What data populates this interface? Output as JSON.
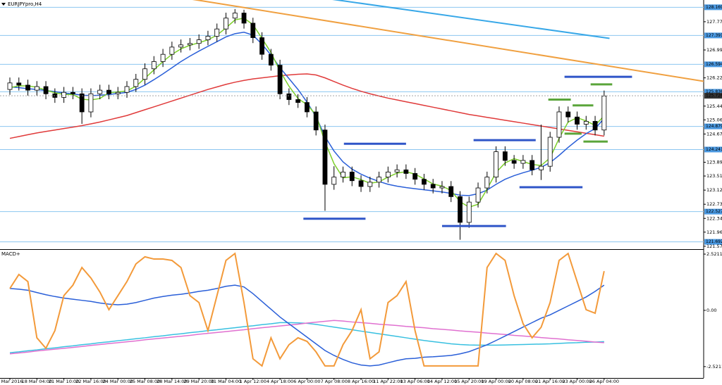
{
  "chart_data": [
    {
      "type": "candlestick",
      "title": "EURJPYpro,H4",
      "categories": [
        "8 Mar 2016",
        null,
        null,
        "18 Mar 04:00",
        null,
        null,
        "21 Mar 10:00",
        null,
        null,
        "22 Mar 16:00",
        null,
        null,
        "24 Mar 00:00",
        null,
        null,
        "25 Mar 08:00",
        null,
        null,
        "28 Mar 14:00",
        null,
        null,
        "29 Mar 20:00",
        null,
        null,
        "31 Mar 04:00",
        null,
        null,
        "1 Apr 12:00",
        null,
        null,
        "4 Apr 18:00",
        null,
        null,
        "6 Apr 00:00",
        null,
        null,
        "7 Apr 08:00",
        null,
        null,
        "8 Apr 16:00",
        null,
        null,
        "11 Apr 22:00",
        null,
        null,
        "13 Apr 06:00",
        null,
        null,
        "14 Apr 12:00",
        null,
        null,
        "15 Apr 20:00",
        null,
        null,
        "19 Apr 00:00",
        null,
        null,
        "20 Apr 08:00",
        null,
        null,
        "21 Apr 16:00",
        null,
        null,
        "23 Apr 00:00",
        null,
        null,
        "26 Apr 04:00"
      ],
      "open": [
        125.9,
        126.08,
        126.02,
        125.88,
        125.98,
        125.78,
        125.68,
        125.82,
        125.78,
        125.28,
        125.78,
        125.88,
        125.78,
        125.82,
        125.98,
        126.18,
        126.47,
        126.67,
        126.87,
        127.07,
        127.13,
        127.17,
        127.27,
        127.37,
        127.57,
        127.87,
        128.01,
        127.73,
        127.33,
        126.87,
        126.57,
        125.78,
        125.62,
        125.54,
        125.28,
        124.78,
        123.28,
        123.48,
        123.62,
        123.38,
        123.22,
        123.34,
        123.48,
        123.62,
        123.68,
        123.58,
        123.42,
        123.28,
        123.18,
        123.22,
        122.94,
        122.23,
        122.79,
        123.18,
        123.48,
        124.18,
        123.94,
        123.86,
        123.94,
        123.68,
        123.78,
        124.58,
        125.28,
        125.14,
        124.94,
        125.02,
        124.78
      ],
      "high": [
        126.23,
        126.23,
        126.17,
        126.13,
        126.13,
        125.93,
        125.97,
        125.97,
        125.93,
        125.93,
        126.03,
        126.03,
        125.97,
        126.13,
        126.33,
        126.62,
        126.82,
        127.02,
        127.22,
        127.28,
        127.32,
        127.42,
        127.52,
        127.72,
        128.02,
        128.12,
        128.1,
        127.88,
        127.48,
        127.02,
        126.72,
        125.93,
        125.77,
        125.69,
        125.43,
        124.93,
        123.78,
        123.77,
        123.77,
        123.53,
        123.49,
        123.63,
        123.77,
        123.83,
        123.83,
        123.73,
        123.57,
        123.43,
        123.37,
        123.37,
        123.09,
        122.94,
        123.33,
        123.63,
        124.33,
        124.33,
        124.09,
        124.09,
        124.09,
        124.93,
        124.73,
        125.43,
        125.43,
        125.29,
        125.17,
        125.17,
        125.87
      ],
      "low": [
        125.75,
        125.87,
        125.73,
        125.73,
        125.63,
        125.53,
        125.53,
        125.63,
        124.95,
        125.13,
        125.63,
        125.63,
        125.63,
        125.67,
        125.83,
        126.03,
        126.32,
        126.52,
        126.72,
        126.92,
        126.98,
        127.02,
        127.12,
        127.22,
        127.42,
        127.72,
        127.58,
        127.18,
        126.72,
        126.42,
        125.63,
        125.47,
        125.39,
        125.13,
        124.63,
        122.55,
        123.13,
        123.33,
        123.23,
        123.07,
        123.07,
        123.19,
        123.33,
        123.47,
        123.43,
        123.27,
        123.13,
        123.03,
        123.03,
        122.79,
        121.75,
        122.08,
        122.64,
        123.03,
        123.33,
        123.79,
        123.71,
        123.71,
        123.53,
        123.4,
        123.63,
        124.43,
        124.99,
        124.79,
        124.79,
        124.63,
        124.63
      ],
      "close": [
        126.08,
        126.02,
        125.88,
        125.98,
        125.78,
        125.68,
        125.82,
        125.78,
        125.28,
        125.78,
        125.88,
        125.78,
        125.82,
        125.98,
        126.18,
        126.47,
        126.67,
        126.87,
        127.07,
        127.13,
        127.17,
        127.27,
        127.37,
        127.57,
        127.87,
        128.01,
        127.73,
        127.33,
        126.87,
        126.57,
        125.78,
        125.62,
        125.54,
        125.28,
        124.78,
        123.28,
        123.48,
        123.62,
        123.38,
        123.22,
        123.34,
        123.48,
        123.62,
        123.68,
        123.58,
        123.42,
        123.28,
        123.18,
        123.22,
        122.94,
        122.23,
        122.79,
        123.18,
        123.48,
        124.18,
        123.94,
        123.86,
        123.94,
        123.68,
        123.78,
        124.58,
        125.28,
        125.14,
        124.94,
        125.02,
        124.78,
        125.72
      ],
      "series": [
        {
          "color": "#e03a3a",
          "values": [
            124.55,
            124.6,
            124.65,
            124.7,
            124.74,
            124.78,
            124.82,
            124.86,
            124.9,
            124.95,
            125.0,
            125.06,
            125.12,
            125.18,
            125.26,
            125.34,
            125.42,
            125.5,
            125.58,
            125.66,
            125.74,
            125.82,
            125.9,
            125.97,
            126.04,
            126.1,
            126.15,
            126.19,
            126.22,
            126.25,
            126.28,
            126.3,
            126.32,
            126.33,
            126.3,
            126.22,
            126.12,
            126.02,
            125.93,
            125.85,
            125.78,
            125.72,
            125.66,
            125.61,
            125.56,
            125.51,
            125.46,
            125.41,
            125.36,
            125.31,
            125.26,
            125.21,
            125.17,
            125.13,
            125.09,
            125.05,
            125.01,
            124.97,
            124.93,
            124.89,
            124.85,
            124.81,
            124.77,
            124.73,
            124.69,
            124.65,
            124.61
          ]
        },
        {
          "color": "#2a5fd8",
          "values": [
            125.97,
            125.95,
            125.92,
            125.9,
            125.87,
            125.84,
            125.8,
            125.78,
            125.74,
            125.73,
            125.74,
            125.76,
            125.79,
            125.82,
            125.9,
            126.02,
            126.17,
            126.33,
            126.5,
            126.67,
            126.82,
            126.96,
            127.09,
            127.22,
            127.35,
            127.44,
            127.48,
            127.4,
            127.15,
            126.85,
            126.5,
            126.2,
            125.9,
            125.55,
            125.15,
            124.6,
            124.2,
            123.9,
            123.7,
            123.56,
            123.45,
            123.36,
            123.28,
            123.23,
            123.19,
            123.16,
            123.13,
            123.1,
            123.07,
            123.03,
            122.98,
            122.97,
            123.02,
            123.12,
            123.28,
            123.42,
            123.52,
            123.6,
            123.67,
            123.75,
            123.88,
            124.08,
            124.3,
            124.5,
            124.68,
            124.82,
            125.1
          ]
        },
        {
          "color": "#7ccf2a",
          "values": [
            125.95,
            126.0,
            126.0,
            125.96,
            125.88,
            125.81,
            125.76,
            125.76,
            125.63,
            125.61,
            125.65,
            125.81,
            125.83,
            125.86,
            125.99,
            126.21,
            126.44,
            126.67,
            126.87,
            127.02,
            127.12,
            127.19,
            127.27,
            127.4,
            127.6,
            127.82,
            127.87,
            127.69,
            127.31,
            126.92,
            126.41,
            125.99,
            125.65,
            125.48,
            125.2,
            124.45,
            123.85,
            123.46,
            123.49,
            123.41,
            123.31,
            123.35,
            123.48,
            123.59,
            123.63,
            123.56,
            123.43,
            123.29,
            123.23,
            123.11,
            122.8,
            122.65,
            122.73,
            123.15,
            123.61,
            123.87,
            123.99,
            123.91,
            123.83,
            123.8,
            124.01,
            124.55,
            125.0,
            125.12,
            125.03,
            124.91,
            125.17
          ]
        }
      ],
      "trendlines": [
        {
          "color": "#f0a040",
          "x": [
            15.74,
            77.2
          ],
          "y": [
            128.57,
            126.12
          ]
        },
        {
          "color": "#38a8e8",
          "x": [
            31.8,
            66.6
          ],
          "y": [
            128.53,
            127.31
          ]
        }
      ],
      "levels": [
        {
          "color": "#2f55c8",
          "price": 124.4,
          "from": 37.1,
          "to": 44.0
        },
        {
          "color": "#2f55c8",
          "price": 122.33,
          "from": 32.6,
          "to": 39.5
        },
        {
          "color": "#2f55c8",
          "price": 122.13,
          "from": 48.0,
          "to": 55.1
        },
        {
          "color": "#2f55c8",
          "price": 124.5,
          "from": 51.5,
          "to": 58.4
        },
        {
          "color": "#2f55c8",
          "price": 123.2,
          "from": 56.6,
          "to": 63.6
        },
        {
          "color": "#2f55c8",
          "price": 126.25,
          "from": 61.6,
          "to": 69.1
        },
        {
          "color": "#5aa53a",
          "price": 126.04,
          "from": 64.5,
          "to": 66.9
        },
        {
          "color": "#5aa53a",
          "price": 125.62,
          "from": 59.8,
          "to": 62.3
        },
        {
          "color": "#5aa53a",
          "price": 125.46,
          "from": 62.5,
          "to": 64.8
        },
        {
          "color": "#5aa53a",
          "price": 124.68,
          "from": 61.6,
          "to": 63.5
        },
        {
          "color": "#5aa53a",
          "price": 124.46,
          "from": 63.7,
          "to": 66.4
        }
      ],
      "hlines": [
        128.169,
        127.391,
        126.594,
        125.836,
        124.879,
        124.241,
        122.527,
        121.692
      ],
      "hline_color": "#8cc6f0",
      "last_price": 125.726,
      "ylim": [
        121.49,
        128.37
      ],
      "yticks": [
        {
          "value": 127.77,
          "label": "127.770"
        },
        {
          "value": 126.99,
          "label": "126.990"
        },
        {
          "value": 126.22,
          "label": "126.220"
        },
        {
          "value": 125.44,
          "label": "125.440"
        },
        {
          "value": 125.06,
          "label": "125.060"
        },
        {
          "value": 124.67,
          "label": "124.670"
        },
        {
          "value": 123.89,
          "label": "123.890"
        },
        {
          "value": 123.51,
          "label": "123.510"
        },
        {
          "value": 123.12,
          "label": "123.120"
        },
        {
          "value": 122.73,
          "label": "122.730"
        },
        {
          "value": 122.34,
          "label": "122.340"
        },
        {
          "value": 121.96,
          "label": "121.960"
        },
        {
          "value": 121.57,
          "label": "121.570"
        }
      ]
    },
    {
      "type": "line",
      "title": "MACD+",
      "series": [
        {
          "color": "#38c0e0",
          "values": [
            -1.9,
            -1.86,
            -1.81,
            -1.77,
            -1.72,
            -1.68,
            -1.63,
            -1.59,
            -1.54,
            -1.5,
            -1.45,
            -1.41,
            -1.36,
            -1.32,
            -1.27,
            -1.23,
            -1.18,
            -1.14,
            -1.09,
            -1.05,
            -1.0,
            -0.96,
            -0.91,
            -0.87,
            -0.82,
            -0.78,
            -0.73,
            -0.69,
            -0.64,
            -0.6,
            -0.55,
            -0.55,
            -0.56,
            -0.58,
            -0.63,
            -0.69,
            -0.75,
            -0.81,
            -0.87,
            -0.93,
            -0.99,
            -1.05,
            -1.11,
            -1.17,
            -1.23,
            -1.29,
            -1.35,
            -1.4,
            -1.45,
            -1.5,
            -1.53,
            -1.55,
            -1.56,
            -1.56,
            -1.56,
            -1.55,
            -1.54,
            -1.53,
            -1.52,
            -1.51,
            -1.5,
            -1.48,
            -1.46,
            -1.45,
            -1.43,
            -1.42,
            -1.4
          ]
        },
        {
          "color": "#e070d0",
          "values": [
            -1.95,
            -1.91,
            -1.87,
            -1.82,
            -1.78,
            -1.74,
            -1.7,
            -1.66,
            -1.62,
            -1.57,
            -1.53,
            -1.49,
            -1.45,
            -1.41,
            -1.37,
            -1.32,
            -1.28,
            -1.24,
            -1.2,
            -1.16,
            -1.12,
            -1.07,
            -1.03,
            -0.99,
            -0.95,
            -0.91,
            -0.87,
            -0.82,
            -0.78,
            -0.74,
            -0.7,
            -0.66,
            -0.62,
            -0.57,
            -0.53,
            -0.49,
            -0.45,
            -0.48,
            -0.52,
            -0.55,
            -0.58,
            -0.62,
            -0.65,
            -0.68,
            -0.72,
            -0.75,
            -0.78,
            -0.82,
            -0.85,
            -0.88,
            -0.92,
            -0.95,
            -0.98,
            -1.02,
            -1.05,
            -1.08,
            -1.12,
            -1.15,
            -1.18,
            -1.22,
            -1.25,
            -1.28,
            -1.32,
            -1.35,
            -1.38,
            -1.42,
            -1.45
          ]
        },
        {
          "color": "#2a5fd8",
          "values": [
            0.98,
            0.95,
            0.9,
            0.8,
            0.7,
            0.62,
            0.55,
            0.5,
            0.45,
            0.4,
            0.33,
            0.28,
            0.25,
            0.28,
            0.35,
            0.45,
            0.55,
            0.62,
            0.68,
            0.72,
            0.78,
            0.85,
            0.9,
            0.98,
            1.08,
            1.13,
            1.05,
            0.75,
            0.4,
            0.05,
            -0.3,
            -0.6,
            -0.9,
            -1.2,
            -1.5,
            -1.8,
            -2.02,
            -2.2,
            -2.35,
            -2.45,
            -2.49,
            -2.45,
            -2.35,
            -2.25,
            -2.17,
            -2.15,
            -2.1,
            -2.08,
            -2.05,
            -2.02,
            -1.95,
            -1.85,
            -1.7,
            -1.54,
            -1.35,
            -1.15,
            -0.95,
            -0.75,
            -0.55,
            -0.35,
            -0.2,
            0.0,
            0.2,
            0.4,
            0.6,
            0.85,
            1.13
          ]
        },
        {
          "color": "#f39a3a",
          "values": [
            0.98,
            1.61,
            1.29,
            -1.23,
            -1.7,
            -0.91,
            0.66,
            1.13,
            1.92,
            1.45,
            0.82,
            0.03,
            0.66,
            1.29,
            2.08,
            2.4,
            2.3,
            2.3,
            2.24,
            1.92,
            0.66,
            0.35,
            -0.91,
            0.66,
            2.24,
            2.55,
            0.35,
            -2.17,
            -2.49,
            -1.23,
            -2.17,
            -1.54,
            -1.23,
            -1.39,
            -1.86,
            -2.49,
            -2.49,
            -1.54,
            -0.91,
            0.03,
            -2.17,
            -1.86,
            0.35,
            0.66,
            1.29,
            -0.91,
            -2.49,
            -2.49,
            -2.49,
            -2.49,
            -2.49,
            -2.49,
            -2.49,
            1.92,
            2.55,
            2.24,
            0.66,
            -0.6,
            -1.23,
            -0.76,
            0.35,
            2.24,
            2.55,
            1.29,
            0.03,
            -0.13,
            1.76
          ]
        }
      ],
      "ylim": [
        -3.03,
        2.68
      ],
      "yticks": [
        2.5211,
        {
          "value": 0,
          "label": "0.00"
        },
        -2.5211
      ]
    }
  ]
}
